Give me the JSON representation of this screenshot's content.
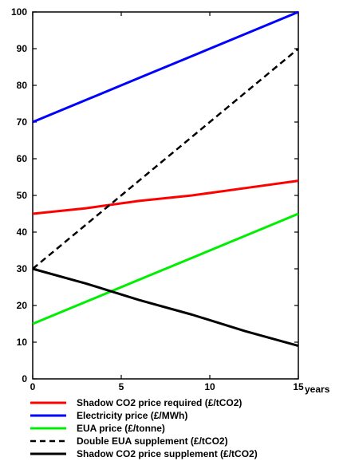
{
  "chart_data": {
    "type": "line",
    "title": "",
    "xlabel": "years",
    "ylabel": "",
    "xlim": [
      0,
      15
    ],
    "ylim": [
      0,
      100
    ],
    "x_ticks": [
      0,
      5,
      10,
      15
    ],
    "y_ticks": [
      0,
      10,
      20,
      30,
      40,
      50,
      60,
      70,
      80,
      90,
      100
    ],
    "grid": false,
    "legend_position": "bottom",
    "series": [
      {
        "name": "Shadow CO2 price required (£/tCO2)",
        "color": "#ff0000",
        "dash": "solid",
        "x": [
          0,
          3,
          6,
          9,
          12,
          15
        ],
        "y": [
          45,
          46.5,
          48.5,
          50,
          52,
          54
        ]
      },
      {
        "name": "Electricity price (£/MWh)",
        "color": "#0000ff",
        "dash": "solid",
        "x": [
          0,
          3,
          6,
          9,
          12,
          15
        ],
        "y": [
          70,
          76,
          82,
          88,
          94,
          100
        ]
      },
      {
        "name": "EUA price (£/tonne)",
        "color": "#00ee00",
        "dash": "solid",
        "x": [
          0,
          3,
          6,
          9,
          12,
          15
        ],
        "y": [
          15,
          21,
          27,
          33,
          39,
          45
        ]
      },
      {
        "name": "Double EUA  supplement (£/tCO2)",
        "color": "#000000",
        "dash": "dashed",
        "x": [
          0,
          3,
          6,
          9,
          12,
          15
        ],
        "y": [
          30,
          42,
          54,
          66,
          78,
          90
        ]
      },
      {
        "name": "Shadow CO2 price supplement (£/tCO2)",
        "color": "#000000",
        "dash": "solid",
        "x": [
          0,
          3,
          6,
          9,
          12,
          15
        ],
        "y": [
          30,
          26,
          21.5,
          17.5,
          13,
          9
        ]
      }
    ]
  }
}
